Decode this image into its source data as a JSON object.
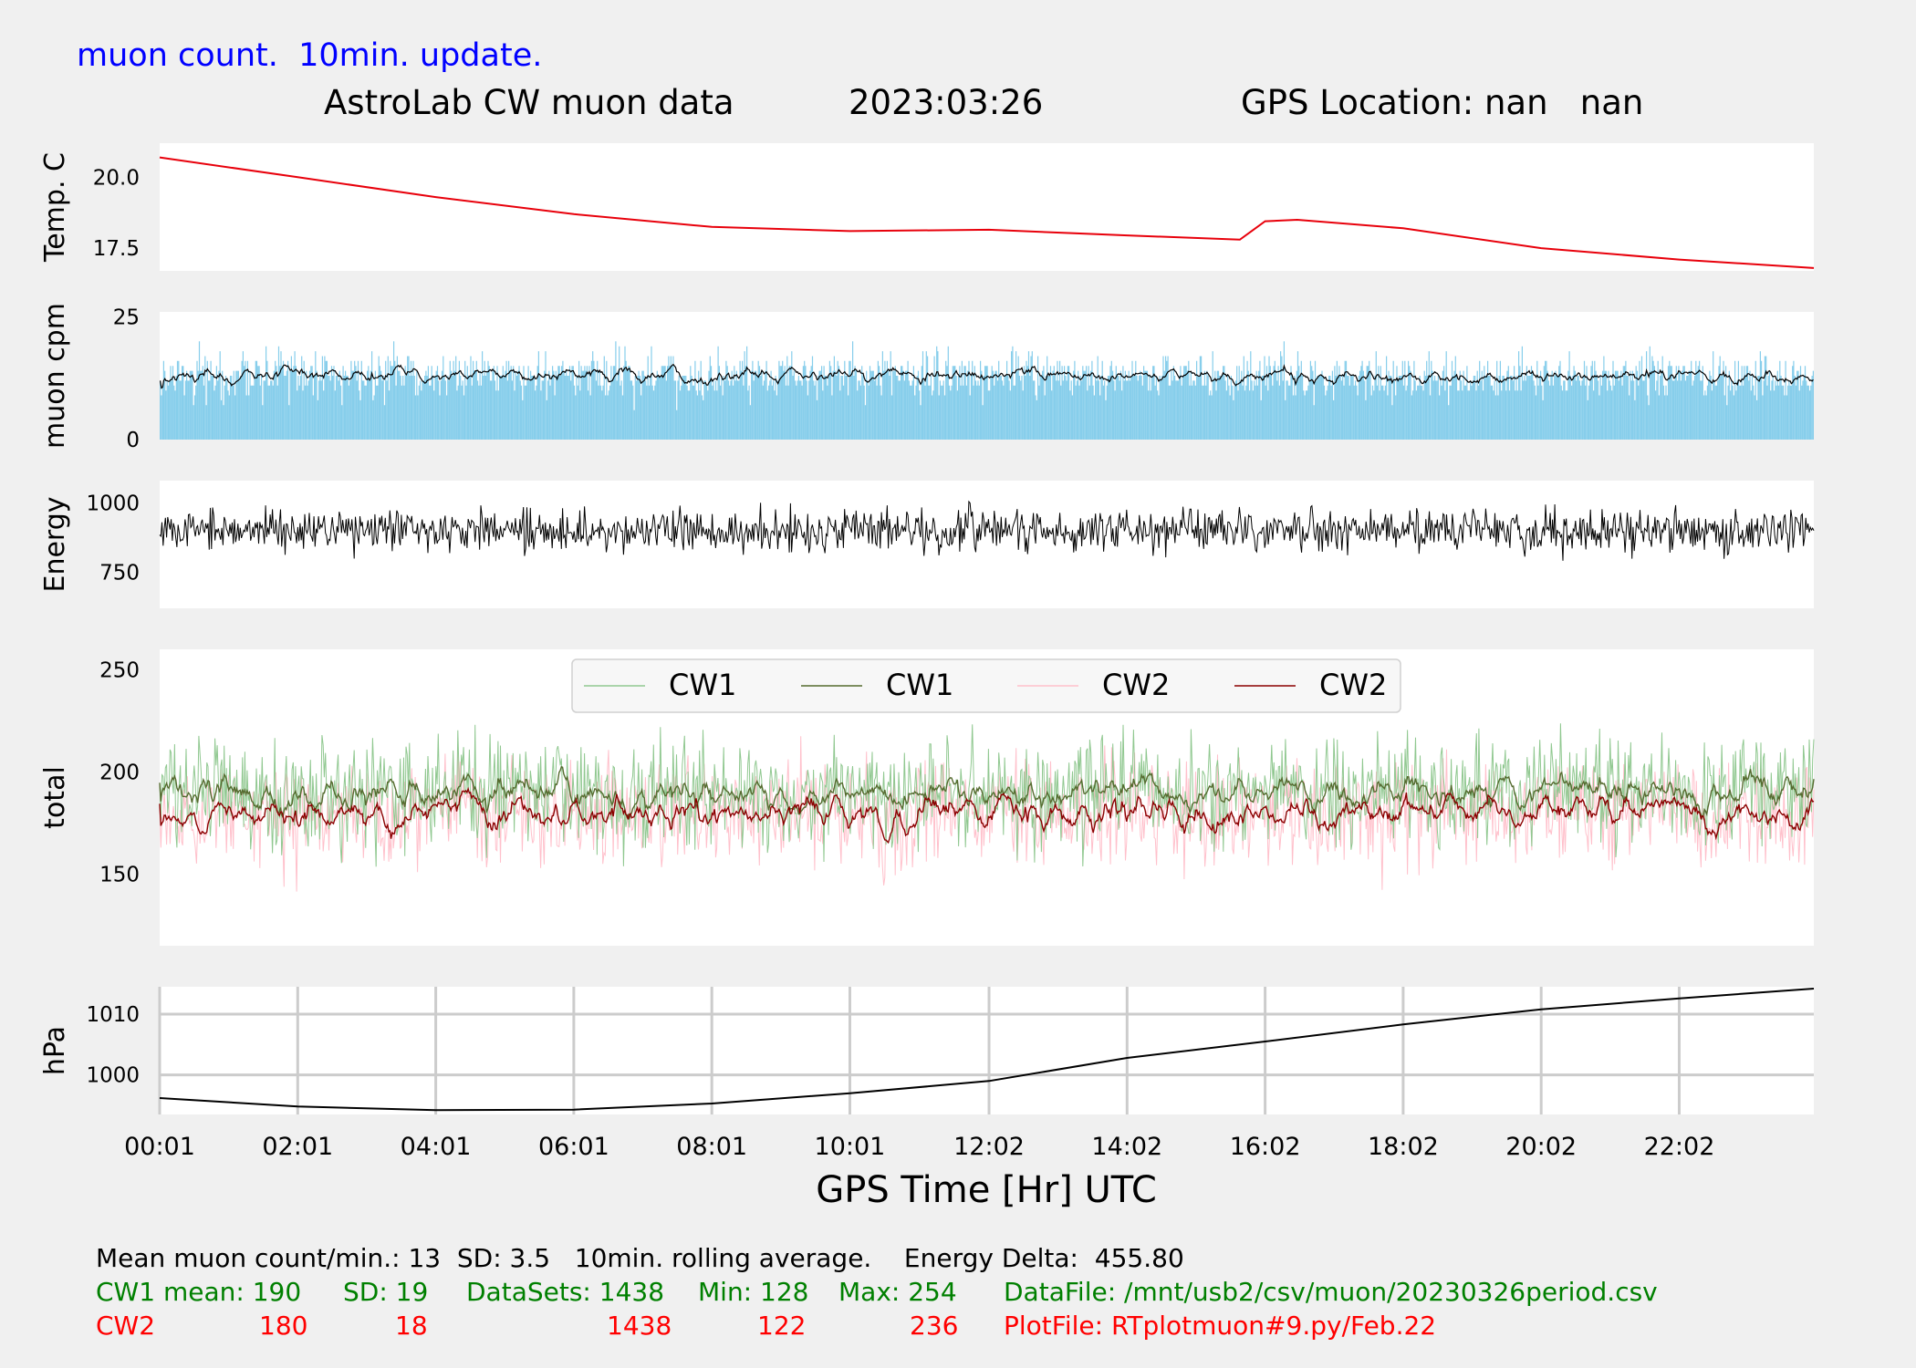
{
  "header": {
    "update_note": "muon count.  10min. update.",
    "title": "AstroLab CW muon data",
    "date": "2023:03:26",
    "gps_location": "GPS Location: nan   nan"
  },
  "colors": {
    "background": "#f0f0f0",
    "temperature": "#e8000b",
    "muon_bars": "#87ceeb",
    "cw1_raw": "#90c890",
    "cw1_avg": "#556b2f",
    "cw2_raw": "#ffc0cb",
    "cw2_avg": "#8b0000",
    "stats_cw1": "#008000",
    "stats_cw2": "#ff0000"
  },
  "chart_data": [
    {
      "type": "line",
      "ylabel": "Temp. C",
      "yticks": [
        17.5,
        20.0
      ],
      "ylim": [
        16.7,
        21.2
      ],
      "x": [
        "00:01",
        "02:01",
        "04:01",
        "06:01",
        "08:01",
        "10:01",
        "12:02",
        "14:02",
        "15:40",
        "16:02",
        "16:30",
        "18:02",
        "20:02",
        "22:02",
        "23:59"
      ],
      "values": [
        20.7,
        20.0,
        19.3,
        18.7,
        18.25,
        18.1,
        18.15,
        17.95,
        17.8,
        18.45,
        18.5,
        18.2,
        17.5,
        17.1,
        16.8
      ],
      "grid": false
    },
    {
      "type": "bar",
      "ylabel": "muon cpm",
      "yticks": [
        0,
        25
      ],
      "ylim": [
        0,
        26
      ],
      "mean": 13,
      "sd": 3.5,
      "series": [
        {
          "values": "per-minute counts (1438 bars)"
        },
        {
          "values": "10 min rolling average"
        }
      ],
      "grid": false
    },
    {
      "type": "line",
      "ylabel": "Energy",
      "yticks": [
        750,
        1000
      ],
      "ylim": [
        620,
        1080
      ],
      "center": 900,
      "grid": false
    },
    {
      "type": "line",
      "ylabel": "total",
      "yticks": [
        150,
        200,
        250
      ],
      "ylim": [
        115,
        260
      ],
      "legend_position": "top-center",
      "series": [
        {
          "name": "CW1",
          "mean": 190,
          "min": 128,
          "max": 254
        },
        {
          "name": "CW1",
          "mean": 190
        },
        {
          "name": "CW2",
          "mean": 180,
          "min": 122,
          "max": 236
        },
        {
          "name": "CW2",
          "mean": 180
        }
      ],
      "grid": false
    },
    {
      "type": "line",
      "ylabel": "hPa",
      "yticks": [
        1000,
        1010
      ],
      "ylim": [
        993.5,
        1014.5
      ],
      "x": [
        "00:01",
        "02:01",
        "04:01",
        "06:01",
        "08:01",
        "10:01",
        "12:02",
        "14:02",
        "16:02",
        "18:02",
        "20:02",
        "22:02",
        "23:59"
      ],
      "values": [
        996.2,
        994.8,
        994.2,
        994.3,
        995.3,
        997.0,
        999.0,
        1002.8,
        1005.5,
        1008.3,
        1010.8,
        1012.6,
        1014.2
      ],
      "xticks": [
        "00:01",
        "02:01",
        "04:01",
        "06:01",
        "08:01",
        "10:01",
        "12:02",
        "14:02",
        "16:02",
        "18:02",
        "20:02",
        "22:02"
      ],
      "xlabel": "GPS Time  [Hr] UTC",
      "grid": true
    }
  ],
  "stats": {
    "line1": "Mean muon count/min.: 13  SD: 3.5   10min. rolling average.    Energy Delta:  455.80",
    "cw1": {
      "mean": "CW1 mean: 190",
      "sd": "SD: 19",
      "datasets": "DataSets: 1438",
      "min": "Min: 128",
      "max": "Max: 254",
      "file": "DataFile: /mnt/usb2/csv/muon/20230326period.csv"
    },
    "cw2": {
      "label": "CW2",
      "mean": "180",
      "sd": "18",
      "datasets": "1438",
      "min": "122",
      "max": "236",
      "file": "PlotFile: RTplotmuon#9.py/Feb.22"
    }
  }
}
